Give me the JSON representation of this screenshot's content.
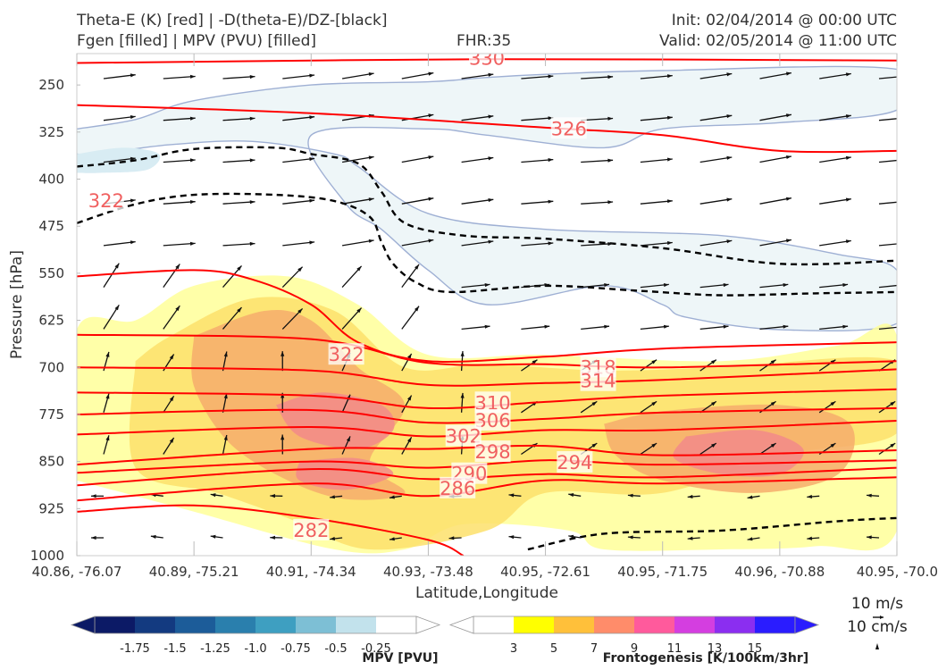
{
  "header": {
    "title_line1": "Theta-E (K) [red] | -D(theta-E)/DZ-[black]",
    "title_line2": "Fgen [filled] | MPV (PVU) [filled]",
    "fhr": "FHR:35",
    "init": "Init: 02/04/2014 @ 00:00 UTC",
    "valid": "Valid: 02/05/2014 @ 11:00 UTC"
  },
  "chart_data": {
    "type": "cross-section",
    "ylabel": "Pressure [hPa]",
    "xlabel": "Latitude,Longitude",
    "y_scale": "inverted",
    "ylim": [
      1000,
      200
    ],
    "y_ticks": [
      250,
      325,
      400,
      475,
      550,
      625,
      700,
      775,
      850,
      925,
      1000
    ],
    "y_tick_labels": [
      "250",
      "325",
      "400",
      "475",
      "550",
      "625",
      "700",
      "775",
      "850",
      "925",
      "1000"
    ],
    "x_ticks": [
      0,
      1,
      2,
      3,
      4,
      5,
      6,
      7
    ],
    "x_tick_labels": [
      "40.86, -76.07",
      "40.89, -75.21",
      "40.91, -74.34",
      "40.93, -73.48",
      "40.95, -72.61",
      "40.95, -71.75",
      "40.96, -70.88",
      "40.95, -70.0"
    ],
    "theta_e_series": [
      {
        "label": "330",
        "points": [
          [
            0,
            215
          ],
          [
            3.5,
            209
          ],
          [
            7,
            211
          ]
        ]
      },
      {
        "label": "326",
        "points": [
          [
            0,
            282
          ],
          [
            2,
            295
          ],
          [
            4,
            318
          ],
          [
            5,
            330
          ],
          [
            6,
            355
          ],
          [
            7,
            355
          ]
        ]
      },
      {
        "label": "322",
        "points": [
          [
            0,
            555
          ],
          [
            1,
            545
          ],
          [
            1.5,
            560
          ],
          [
            2,
            600
          ],
          [
            2.4,
            660
          ],
          [
            3,
            690
          ],
          [
            4,
            683
          ],
          [
            5,
            670
          ],
          [
            7,
            660
          ]
        ]
      },
      {
        "label": "318",
        "points": [
          [
            0,
            648
          ],
          [
            2,
            655
          ],
          [
            3,
            693
          ],
          [
            4,
            695
          ],
          [
            5,
            700
          ],
          [
            7,
            690
          ]
        ]
      },
      {
        "label": "314",
        "points": [
          [
            0,
            700
          ],
          [
            2,
            705
          ],
          [
            3,
            728
          ],
          [
            4,
            725
          ],
          [
            5,
            720
          ],
          [
            7,
            703
          ]
        ]
      },
      {
        "label": "310",
        "points": [
          [
            0,
            740
          ],
          [
            2,
            745
          ],
          [
            3,
            765
          ],
          [
            4,
            755
          ],
          [
            5,
            745
          ],
          [
            7,
            735
          ]
        ]
      },
      {
        "label": "306",
        "points": [
          [
            0,
            775
          ],
          [
            2,
            768
          ],
          [
            3,
            788
          ],
          [
            4,
            782
          ],
          [
            5,
            772
          ],
          [
            7,
            765
          ]
        ]
      },
      {
        "label": "302",
        "points": [
          [
            0,
            807
          ],
          [
            2,
            795
          ],
          [
            3,
            810
          ],
          [
            4,
            800
          ],
          [
            5,
            800
          ],
          [
            7,
            785
          ]
        ]
      },
      {
        "label": "298",
        "points": [
          [
            0,
            855
          ],
          [
            2,
            830
          ],
          [
            3,
            830
          ],
          [
            4,
            825
          ],
          [
            5,
            840
          ],
          [
            7,
            832
          ]
        ]
      },
      {
        "label": "294",
        "points": [
          [
            0,
            868
          ],
          [
            2,
            850
          ],
          [
            3,
            860
          ],
          [
            4,
            848
          ],
          [
            5,
            855
          ],
          [
            7,
            848
          ]
        ]
      },
      {
        "label": "290",
        "points": [
          [
            0,
            888
          ],
          [
            2,
            862
          ],
          [
            3,
            878
          ],
          [
            4,
            870
          ],
          [
            5,
            875
          ],
          [
            7,
            860
          ]
        ]
      },
      {
        "label": "286",
        "points": [
          [
            0,
            912
          ],
          [
            2,
            885
          ],
          [
            3,
            905
          ],
          [
            4,
            880
          ],
          [
            5,
            885
          ],
          [
            7,
            875
          ]
        ]
      },
      {
        "label": "282",
        "points": [
          [
            0,
            930
          ],
          [
            1,
            920
          ],
          [
            2,
            940
          ],
          [
            3,
            975
          ],
          [
            3.3,
            1000
          ]
        ]
      }
    ],
    "theta_e_label_positions": [
      {
        "label": "330",
        "x": 3.5,
        "y": 208
      },
      {
        "label": "326",
        "x": 4.2,
        "y": 320
      },
      {
        "label": "322",
        "x": 2.3,
        "y": 680
      },
      {
        "label": "322",
        "x": 0.25,
        "y": 435
      },
      {
        "label": "318",
        "x": 4.45,
        "y": 700
      },
      {
        "label": "314",
        "x": 4.45,
        "y": 722
      },
      {
        "label": "310",
        "x": 3.55,
        "y": 757
      },
      {
        "label": "306",
        "x": 3.55,
        "y": 785
      },
      {
        "label": "302",
        "x": 3.3,
        "y": 810
      },
      {
        "label": "298",
        "x": 3.55,
        "y": 835
      },
      {
        "label": "294",
        "x": 4.25,
        "y": 852
      },
      {
        "label": "290",
        "x": 3.35,
        "y": 870
      },
      {
        "label": "286",
        "x": 3.25,
        "y": 893
      },
      {
        "label": "282",
        "x": 2.0,
        "y": 960
      }
    ],
    "stability_contour_dashed": [
      [
        [
          0,
          470
        ],
        [
          0.5,
          440
        ],
        [
          1,
          425
        ],
        [
          1.7,
          425
        ],
        [
          2.2,
          435
        ],
        [
          2.5,
          460
        ],
        [
          2.6,
          500
        ],
        [
          2.7,
          535
        ],
        [
          2.9,
          565
        ],
        [
          3.2,
          580
        ],
        [
          4,
          570
        ],
        [
          4.8,
          578
        ],
        [
          5.5,
          585
        ],
        [
          6.3,
          582
        ],
        [
          7,
          580
        ]
      ],
      [
        [
          0,
          380
        ],
        [
          0.5,
          370
        ],
        [
          1,
          352
        ],
        [
          1.7,
          350
        ],
        [
          2,
          360
        ],
        [
          2.4,
          375
        ],
        [
          2.6,
          420
        ],
        [
          2.8,
          470
        ],
        [
          3.3,
          490
        ],
        [
          4,
          495
        ],
        [
          5,
          510
        ],
        [
          6,
          535
        ],
        [
          7,
          530
        ]
      ],
      [
        [
          3.85,
          990
        ],
        [
          4.5,
          965
        ],
        [
          5.5,
          960
        ],
        [
          6.5,
          945
        ],
        [
          7,
          940
        ]
      ]
    ],
    "mpv_negative_contours": [
      [
        [
          0,
          320
        ],
        [
          0.5,
          305
        ],
        [
          1,
          275
        ],
        [
          2,
          250
        ],
        [
          3,
          245
        ],
        [
          3.5,
          238
        ],
        [
          4,
          233
        ],
        [
          5,
          227
        ],
        [
          7,
          225
        ],
        [
          7,
          290
        ],
        [
          6,
          310
        ],
        [
          5,
          320
        ],
        [
          4.5,
          350
        ],
        [
          3.5,
          330
        ],
        [
          3,
          320
        ],
        [
          2,
          330
        ],
        [
          2.3,
          440
        ],
        [
          2.6,
          480
        ],
        [
          3,
          545
        ],
        [
          3.5,
          600
        ],
        [
          4.5,
          570
        ],
        [
          5,
          600
        ],
        [
          5.2,
          620
        ],
        [
          6,
          640
        ],
        [
          7,
          630
        ],
        [
          7,
          545
        ],
        [
          6.5,
          520
        ],
        [
          5.5,
          490
        ],
        [
          4,
          480
        ],
        [
          3,
          455
        ],
        [
          2.4,
          380
        ],
        [
          2.2,
          360
        ],
        [
          1.5,
          340
        ],
        [
          0.8,
          345
        ],
        [
          0,
          360
        ]
      ]
    ],
    "mpv_light_blue_patch": [
      [
        0,
        360
      ],
      [
        0.4,
        350
      ],
      [
        0.7,
        360
      ],
      [
        0.6,
        385
      ],
      [
        0.2,
        390
      ],
      [
        0,
        390
      ]
    ],
    "frontogenesis_levels": [
      {
        "level": "3",
        "color": "#ffff99",
        "polygon": [
          [
            0,
            880
          ],
          [
            0,
            640
          ],
          [
            0.5,
            625
          ],
          [
            1,
            570
          ],
          [
            1.8,
            555
          ],
          [
            2.4,
            600
          ],
          [
            3,
            680
          ],
          [
            4,
            680
          ],
          [
            5.5,
            690
          ],
          [
            6.5,
            665
          ],
          [
            7,
            650
          ],
          [
            7,
            960
          ],
          [
            6.3,
            985
          ],
          [
            5.5,
            990
          ],
          [
            4.5,
            990
          ],
          [
            4.2,
            960
          ],
          [
            3.3,
            950
          ],
          [
            2.8,
            990
          ],
          [
            2.2,
            990
          ],
          [
            1,
            930
          ]
        ]
      },
      {
        "level": "5",
        "color": "#fde06b",
        "polygon": [
          [
            0.5,
            690
          ],
          [
            0.8,
            650
          ],
          [
            1.5,
            590
          ],
          [
            2.2,
            610
          ],
          [
            2.8,
            700
          ],
          [
            3.5,
            695
          ],
          [
            4.5,
            705
          ],
          [
            5.5,
            700
          ],
          [
            7,
            690
          ],
          [
            7,
            805
          ],
          [
            6,
            840
          ],
          [
            5,
            900
          ],
          [
            4,
            900
          ],
          [
            3.5,
            960
          ],
          [
            2.5,
            990
          ],
          [
            1.8,
            940
          ],
          [
            1.2,
            900
          ],
          [
            0.5,
            860
          ]
        ]
      },
      {
        "level": "7",
        "color": "#f6ad6c",
        "polygon": [
          [
            1,
            650
          ],
          [
            1.6,
            610
          ],
          [
            2,
            625
          ],
          [
            2.4,
            700
          ],
          [
            2.8,
            760
          ],
          [
            2.5,
            850
          ],
          [
            2.8,
            900
          ],
          [
            2.3,
            910
          ],
          [
            1.8,
            880
          ],
          [
            1.3,
            820
          ],
          [
            1,
            730
          ]
        ]
      },
      {
        "level": "7",
        "color": "#f6ad6c",
        "polygon": [
          [
            4.5,
            790
          ],
          [
            5,
            770
          ],
          [
            6,
            760
          ],
          [
            6.6,
            790
          ],
          [
            6.5,
            870
          ],
          [
            5.8,
            900
          ],
          [
            5,
            880
          ],
          [
            4.6,
            840
          ]
        ]
      },
      {
        "level": "9",
        "color": "#f28a8a",
        "polygon": [
          [
            1.7,
            760
          ],
          [
            2.1,
            740
          ],
          [
            2.6,
            760
          ],
          [
            2.7,
            800
          ],
          [
            2.4,
            830
          ],
          [
            1.9,
            810
          ]
        ]
      },
      {
        "level": "9",
        "color": "#f28a8a",
        "polygon": [
          [
            5.2,
            810
          ],
          [
            5.8,
            800
          ],
          [
            6.2,
            830
          ],
          [
            6,
            870
          ],
          [
            5.5,
            870
          ],
          [
            5.1,
            845
          ]
        ]
      },
      {
        "level": "9",
        "color": "#f28a8a",
        "polygon": [
          [
            1.9,
            850
          ],
          [
            2.4,
            845
          ],
          [
            2.7,
            870
          ],
          [
            2.3,
            895
          ],
          [
            1.9,
            880
          ]
        ]
      }
    ],
    "mpv_colorbar": {
      "title": "MPV [PVU]",
      "tick_labels": [
        "-1.75",
        "-1.5",
        "-1.25",
        "-1.0",
        "-0.75",
        "-0.5",
        "-0.25"
      ],
      "colors": [
        "#0c1a66",
        "#133a80",
        "#1c5c99",
        "#2a7fad",
        "#3e9fc1",
        "#7dbfd5",
        "#c2e2ec",
        "#ffffff"
      ]
    },
    "fgen_colorbar": {
      "title": "Frontogenesis [K/100km/3hr]",
      "tick_labels": [
        "3",
        "5",
        "7",
        "9",
        "11",
        "13",
        "15"
      ],
      "colors": [
        "#ffffff",
        "#ffff00",
        "#ffc03a",
        "#ff8c6a",
        "#ff5a9c",
        "#d43ee0",
        "#8b2ef0",
        "#2a1cff"
      ]
    },
    "wind_reference": {
      "horizontal_label": "10 m/s",
      "vertical_label": "10 cm/s"
    }
  }
}
